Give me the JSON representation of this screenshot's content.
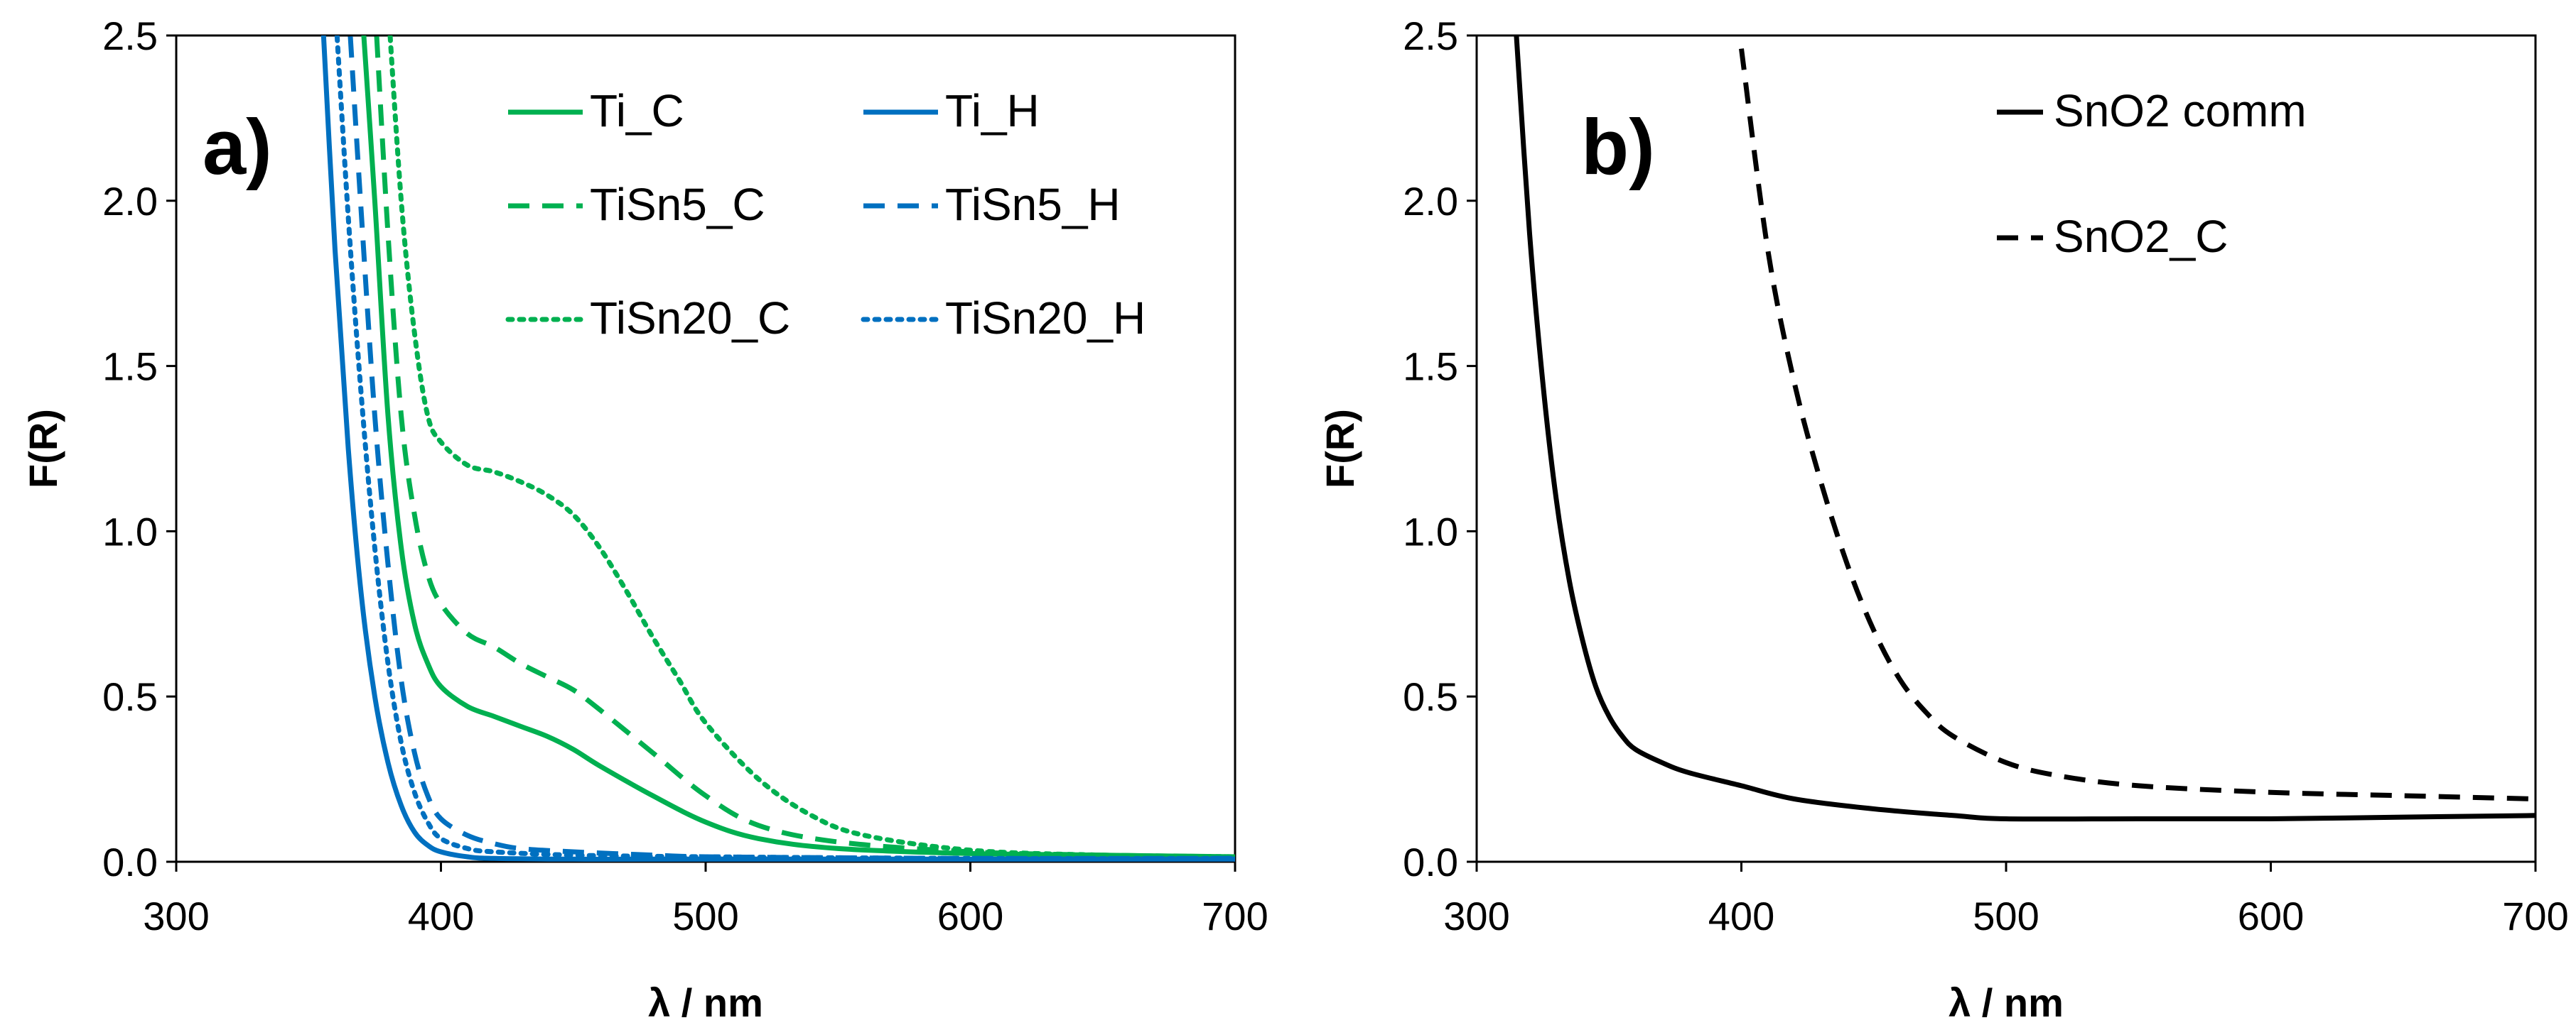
{
  "chart_data": [
    {
      "panel": "a)",
      "type": "line",
      "xlabel": "λ / nm",
      "ylabel": "F(R)",
      "xlim": [
        300,
        700
      ],
      "ylim": [
        0,
        2.5
      ],
      "xticks": [
        300,
        400,
        500,
        600,
        700
      ],
      "yticks": [
        0.0,
        0.5,
        1.0,
        1.5,
        2.0,
        2.5
      ],
      "ytick_labels": [
        "0.0",
        "0.5",
        "1.0",
        "1.5",
        "2.0",
        "2.5"
      ],
      "legend_position": "top-right",
      "series": [
        {
          "name": "Ti_C",
          "color": "#00B050",
          "dash": "solid",
          "x": [
            370,
            375,
            380,
            385,
            390,
            395,
            400,
            410,
            420,
            430,
            440,
            450,
            460,
            480,
            500,
            520,
            550,
            600,
            650,
            700
          ],
          "y": [
            2.6,
            2.0,
            1.35,
            0.95,
            0.72,
            0.6,
            0.53,
            0.47,
            0.44,
            0.41,
            0.38,
            0.34,
            0.29,
            0.2,
            0.12,
            0.07,
            0.04,
            0.025,
            0.02,
            0.015
          ]
        },
        {
          "name": "TiSn5_C",
          "color": "#00B050",
          "dash": "dashed",
          "x": [
            375,
            380,
            385,
            390,
            395,
            400,
            410,
            420,
            430,
            440,
            450,
            460,
            480,
            500,
            520,
            550,
            600,
            650,
            700
          ],
          "y": [
            2.6,
            1.9,
            1.35,
            1.05,
            0.87,
            0.78,
            0.69,
            0.65,
            0.6,
            0.56,
            0.52,
            0.46,
            0.33,
            0.2,
            0.11,
            0.06,
            0.03,
            0.02,
            0.015
          ]
        },
        {
          "name": "TiSn20_C",
          "color": "#00B050",
          "dash": "dotted",
          "x": [
            380,
            385,
            390,
            395,
            400,
            410,
            420,
            430,
            440,
            450,
            460,
            470,
            480,
            490,
            500,
            520,
            540,
            560,
            600,
            650,
            700
          ],
          "y": [
            2.6,
            2.0,
            1.6,
            1.35,
            1.27,
            1.2,
            1.18,
            1.15,
            1.11,
            1.05,
            0.95,
            0.82,
            0.68,
            0.55,
            0.42,
            0.25,
            0.14,
            0.08,
            0.035,
            0.02,
            0.015
          ]
        },
        {
          "name": "Ti_H",
          "color": "#0070C0",
          "dash": "solid",
          "x": [
            355,
            360,
            365,
            370,
            375,
            380,
            385,
            390,
            395,
            400,
            410,
            420,
            450,
            500,
            600,
            700
          ],
          "y": [
            2.6,
            1.85,
            1.25,
            0.8,
            0.5,
            0.3,
            0.17,
            0.09,
            0.05,
            0.03,
            0.015,
            0.01,
            0.008,
            0.008,
            0.008,
            0.008
          ]
        },
        {
          "name": "TiSn5_H",
          "color": "#0070C0",
          "dash": "dashed",
          "x": [
            365,
            370,
            375,
            380,
            385,
            390,
            395,
            400,
            410,
            420,
            430,
            450,
            480,
            500,
            550,
            600,
            700
          ],
          "y": [
            2.6,
            1.95,
            1.35,
            0.9,
            0.55,
            0.33,
            0.2,
            0.13,
            0.08,
            0.055,
            0.04,
            0.03,
            0.02,
            0.015,
            0.012,
            0.01,
            0.01
          ]
        },
        {
          "name": "TiSn20_H",
          "color": "#0070C0",
          "dash": "dotted",
          "x": [
            360,
            365,
            370,
            375,
            380,
            385,
            390,
            395,
            400,
            410,
            420,
            450,
            500,
            600,
            700
          ],
          "y": [
            2.6,
            1.95,
            1.4,
            0.95,
            0.6,
            0.36,
            0.21,
            0.12,
            0.07,
            0.04,
            0.03,
            0.02,
            0.015,
            0.01,
            0.01
          ]
        }
      ]
    },
    {
      "panel": "b)",
      "type": "line",
      "xlabel": "λ / nm",
      "ylabel": "F(R)",
      "xlim": [
        300,
        700
      ],
      "ylim": [
        0,
        2.5
      ],
      "xticks": [
        300,
        400,
        500,
        600,
        700
      ],
      "yticks": [
        0.0,
        0.5,
        1.0,
        1.5,
        2.0,
        2.5
      ],
      "ytick_labels": [
        "0.0",
        "0.5",
        "1.0",
        "1.5",
        "2.0",
        "2.5"
      ],
      "legend_position": "top-right",
      "series": [
        {
          "name": "SnO2 comm",
          "color": "#000000",
          "dash": "solid",
          "x": [
            315,
            320,
            325,
            330,
            335,
            340,
            345,
            350,
            355,
            360,
            370,
            380,
            400,
            420,
            450,
            480,
            500,
            550,
            600,
            650,
            700
          ],
          "y": [
            2.5,
            1.9,
            1.45,
            1.1,
            0.85,
            0.67,
            0.53,
            0.44,
            0.38,
            0.34,
            0.3,
            0.27,
            0.23,
            0.19,
            0.16,
            0.14,
            0.13,
            0.13,
            0.13,
            0.135,
            0.14
          ]
        },
        {
          "name": "SnO2_C",
          "color": "#000000",
          "dash": "dashed",
          "x": [
            400,
            410,
            420,
            430,
            440,
            450,
            460,
            470,
            480,
            500,
            520,
            550,
            600,
            650,
            700
          ],
          "y": [
            2.46,
            1.85,
            1.45,
            1.15,
            0.9,
            0.7,
            0.55,
            0.45,
            0.38,
            0.3,
            0.26,
            0.23,
            0.21,
            0.2,
            0.19
          ]
        }
      ]
    }
  ]
}
